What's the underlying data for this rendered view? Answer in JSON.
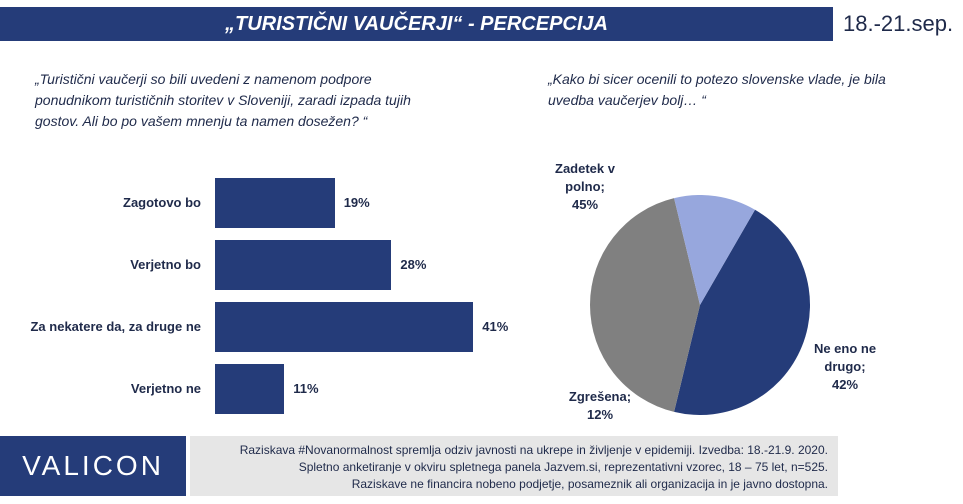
{
  "header": {
    "title": "„TURISTIČNI VAUČERJI“ - PERCEPCIJA",
    "date": "18.-21.sep."
  },
  "left_question": "„Turistični vaučerji so bili uvedeni z namenom podpore ponudnikom turističnih storitev v Sloveniji, zaradi izpada tujih gostov. Ali bo po vašem mnenju ta namen dosežen? “",
  "right_question": "„Kako bi sicer ocenili to potezo slovenske vlade, je bila uvedba vaučerjev bolj… “",
  "chart_data": [
    {
      "type": "bar",
      "orientation": "horizontal",
      "categories": [
        "Zagotovo bo",
        "Verjetno bo",
        "Za nekatere da, za druge ne",
        "Verjetno ne"
      ],
      "values": [
        19,
        28,
        41,
        11
      ],
      "value_labels": [
        "19%",
        "28%",
        "41%",
        "11%"
      ],
      "color": "#253C79"
    },
    {
      "type": "pie",
      "slices": [
        {
          "label": "Zadetek v polno;",
          "value": 45,
          "value_label": "45%",
          "color": "#253C79"
        },
        {
          "label": "Ne eno ne drugo;",
          "value": 42,
          "value_label": "42%",
          "color": "#808080"
        },
        {
          "label": "Zgrešena;",
          "value": 12,
          "value_label": "12%",
          "color": "#97A7DD"
        }
      ]
    }
  ],
  "footer": {
    "logo": "VALICON",
    "lines": [
      "Raziskava #Novanormalnost spremlja odziv javnosti na ukrepe in življenje v epidemiji. Izvedba: 18.-21.9. 2020.",
      "Spletno anketiranje v okviru spletnega panela Jazvem.si, reprezentativni vzorec, 18 – 75 let, n=525.",
      "Raziskave ne financira nobeno podjetje, posameznik ali organizacija in je javno dostopna."
    ]
  }
}
